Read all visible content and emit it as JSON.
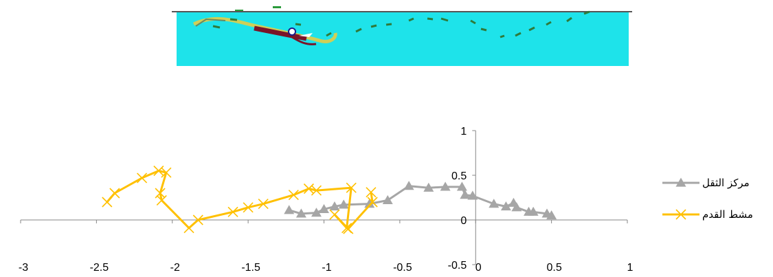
{
  "chart_data": {
    "type": "scatter",
    "title": "",
    "xlabel": "",
    "ylabel": "",
    "xlim": [
      -3,
      1
    ],
    "ylim": [
      -0.5,
      1
    ],
    "x_ticks": [
      "-3",
      "-2.5",
      "-2",
      "-1.5",
      "-1",
      "-0.5",
      "0",
      "0.5",
      "1"
    ],
    "y_ticks": [
      "1",
      "0.5",
      "0",
      "-0.5"
    ],
    "grid": false,
    "legend_position": "right",
    "series": [
      {
        "name": "مركز الثقل",
        "color": "#a6a6a6",
        "marker": "triangle",
        "points": [
          [
            -1.23,
            0.11
          ],
          [
            -1.15,
            0.07
          ],
          [
            -1.05,
            0.08
          ],
          [
            -1.0,
            0.12
          ],
          [
            -0.93,
            0.15
          ],
          [
            -0.87,
            0.17
          ],
          [
            -0.7,
            0.18
          ],
          [
            -0.58,
            0.22
          ],
          [
            -0.44,
            0.38
          ],
          [
            -0.31,
            0.36
          ],
          [
            -0.2,
            0.37
          ],
          [
            -0.09,
            0.37
          ],
          [
            -0.07,
            0.28
          ],
          [
            -0.02,
            0.27
          ],
          [
            0.12,
            0.18
          ],
          [
            0.2,
            0.15
          ],
          [
            0.25,
            0.19
          ],
          [
            0.27,
            0.14
          ],
          [
            0.35,
            0.09
          ],
          [
            0.38,
            0.09
          ],
          [
            0.47,
            0.07
          ],
          [
            0.5,
            0.05
          ]
        ]
      },
      {
        "name": "مشط القدم",
        "color": "#ffc000",
        "marker": "x",
        "points": [
          [
            -2.43,
            0.2
          ],
          [
            -2.38,
            0.3
          ],
          [
            -2.2,
            0.47
          ],
          [
            -2.09,
            0.55
          ],
          [
            -2.04,
            0.53
          ],
          [
            -2.08,
            0.3
          ],
          [
            -2.07,
            0.22
          ],
          [
            -1.89,
            -0.09
          ],
          [
            -1.83,
            0.0
          ],
          [
            -1.6,
            0.09
          ],
          [
            -1.5,
            0.14
          ],
          [
            -1.4,
            0.18
          ],
          [
            -1.2,
            0.28
          ],
          [
            -1.1,
            0.35
          ],
          [
            -1.05,
            0.33
          ],
          [
            -0.82,
            0.36
          ],
          [
            -0.85,
            -0.09
          ],
          [
            -0.93,
            0.06
          ],
          [
            -0.84,
            -0.1
          ],
          [
            -0.68,
            0.2
          ],
          [
            -0.69,
            0.31
          ]
        ]
      }
    ]
  }
}
